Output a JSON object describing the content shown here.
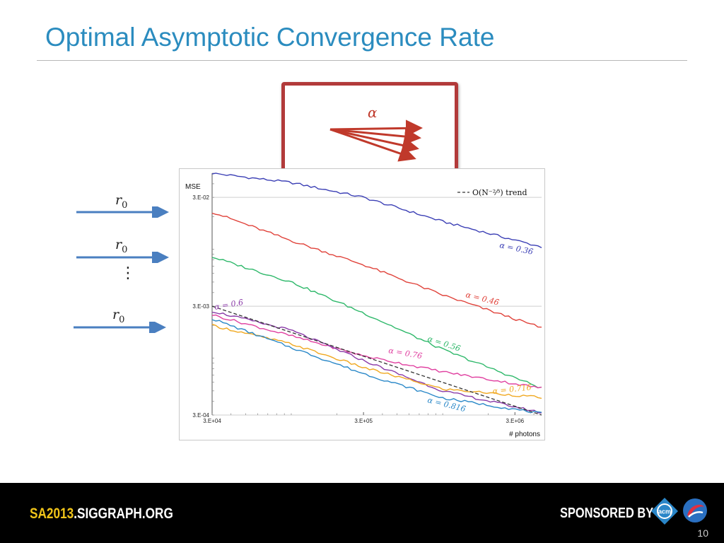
{
  "slide": {
    "title": "Optimal Asymptotic Convergence Rate",
    "page_number": "10"
  },
  "alpha_box": {
    "label": "α"
  },
  "inputs": {
    "r_symbol": "r",
    "r_subscript": "0",
    "ellipsis": "⋮"
  },
  "footer": {
    "site_prefix": "SA2013",
    "site_suffix": ".SIGGRAPH.ORG",
    "sponsored_label": "SPONSORED BY",
    "acm_logo_text": "acm"
  },
  "chart_data": {
    "type": "line",
    "ylabel": "MSE",
    "xlabel": "# photons",
    "xscale": "log",
    "yscale": "log",
    "xlim": [
      30000,
      4500000
    ],
    "ylim": [
      0.0003,
      0.05
    ],
    "x_ticks": [
      "3.E+04",
      "3.E+05",
      "3.E+06"
    ],
    "x_tick_values": [
      30000,
      300000,
      3000000
    ],
    "y_ticks": [
      "3.E-02",
      "3.E-03",
      "3.E-04"
    ],
    "y_tick_values": [
      0.03,
      0.003,
      0.0003
    ],
    "grid": "horizontal",
    "legend": {
      "entries": [
        "-- O(N⁻²⁄³) trend"
      ],
      "placement": "top-right"
    },
    "colors": {
      "a036": "#3b3fb5",
      "a046": "#e0423a",
      "a056": "#2eb86a",
      "a076": "#e040a0",
      "a06": "#8a3aa8",
      "a0716": "#f0a820",
      "a0816": "#2a88c8",
      "trend": "#333333"
    },
    "series": [
      {
        "key": "a036",
        "name": "α = 0.36̄",
        "x": [
          30000,
          100000,
          300000,
          1000000,
          4500000
        ],
        "y": [
          0.05,
          0.041,
          0.03,
          0.018,
          0.0105
        ]
      },
      {
        "key": "a046",
        "name": "α = 0.46̄",
        "x": [
          30000,
          100000,
          300000,
          1000000,
          4500000
        ],
        "y": [
          0.022,
          0.012,
          0.0072,
          0.0038,
          0.0019
        ]
      },
      {
        "key": "a056",
        "name": "α = 0.56̄",
        "x": [
          30000,
          100000,
          300000,
          1000000,
          4500000
        ],
        "y": [
          0.0085,
          0.005,
          0.0026,
          0.0012,
          0.00053
        ]
      },
      {
        "key": "a076",
        "name": "α = 0.76̄",
        "x": [
          30000,
          100000,
          300000,
          1000000,
          4500000
        ],
        "y": [
          0.0025,
          0.0016,
          0.00105,
          0.00075,
          0.00053
        ]
      },
      {
        "key": "a06",
        "name": "α = 0.6̄",
        "x": [
          30000,
          100000,
          300000,
          1000000,
          4500000
        ],
        "y": [
          0.0027,
          0.0018,
          0.00095,
          0.0005,
          0.000315
        ]
      },
      {
        "key": "a0716",
        "name": "α = 0.716̄",
        "x": [
          30000,
          100000,
          300000,
          1000000,
          4500000
        ],
        "y": [
          0.002,
          0.00135,
          0.00082,
          0.00052,
          0.000435
        ]
      },
      {
        "key": "a0816",
        "name": "α = 0.816̄",
        "x": [
          30000,
          100000,
          300000,
          1000000,
          4500000
        ],
        "y": [
          0.0023,
          0.00125,
          0.00072,
          0.00043,
          0.00031
        ]
      },
      {
        "key": "trend",
        "name": "O(N⁻²⁄³) trend",
        "x": [
          30000,
          4500000
        ],
        "y": [
          0.003,
          0.000105
        ]
      }
    ],
    "labels": [
      {
        "key": "a036",
        "text": "α = 0.36̄"
      },
      {
        "key": "a046",
        "text": "α = 0.46̄"
      },
      {
        "key": "a056",
        "text": "α = 0.56̄"
      },
      {
        "key": "a076",
        "text": "α = 0.76̄"
      },
      {
        "key": "a06",
        "text": "α = 0.6̄"
      },
      {
        "key": "a0716",
        "text": "α = 0.716̄"
      },
      {
        "key": "a0816",
        "text": "α = 0.816̄"
      }
    ]
  }
}
